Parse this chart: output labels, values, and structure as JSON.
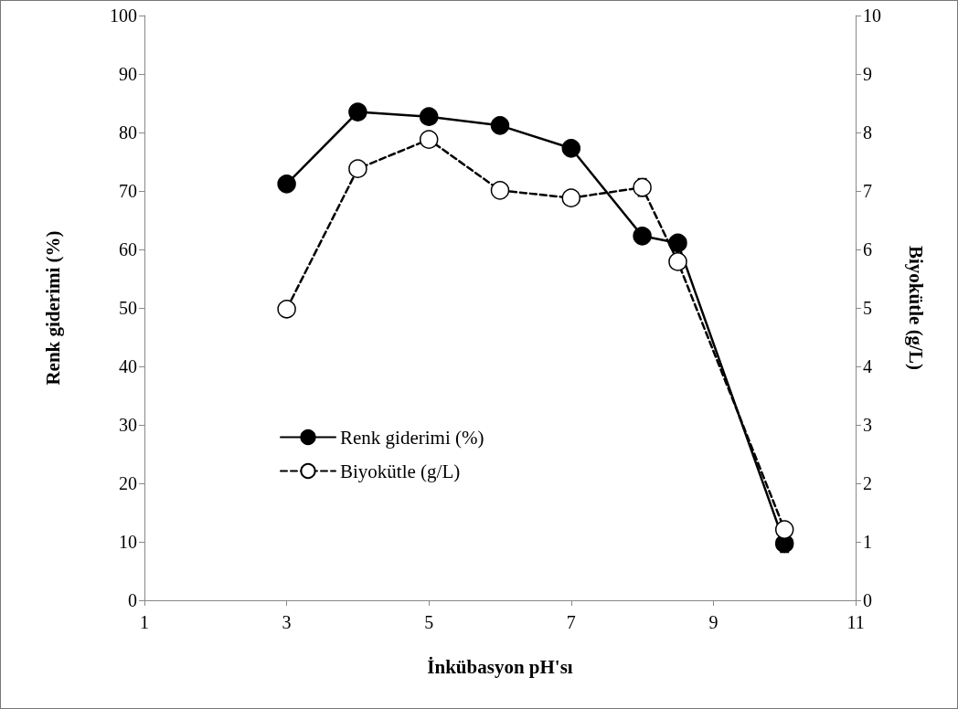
{
  "chart_data": {
    "type": "line",
    "xlabel": "İnkübasyon pH'sı",
    "ylabel": "Renk giderimi (%)",
    "y2label": "Biyokütle (g/L)",
    "x": [
      3,
      4,
      5,
      6,
      7,
      8,
      8.5,
      10
    ],
    "series": [
      {
        "name": "Renk giderimi (%)",
        "color": "#000000",
        "line_style": "solid",
        "values": [
          71.2,
          83.5,
          82.7,
          81.2,
          77.3,
          62.3,
          61.1,
          9.7
        ],
        "errors": [
          null,
          null,
          null,
          null,
          null,
          null,
          null,
          1.5
        ]
      },
      {
        "name": "Biyokütle (g/L)",
        "color": "#ffffff",
        "line_style": "dashed",
        "axis": "y2",
        "values": [
          4.98,
          7.38,
          7.88,
          7.01,
          6.88,
          7.06,
          5.79,
          1.21
        ],
        "errors": [
          null,
          null,
          null,
          null,
          null,
          0.15,
          null,
          null
        ]
      }
    ],
    "xlim": [
      1,
      11
    ],
    "xticks": [
      1,
      3,
      5,
      7,
      9,
      11
    ],
    "ylim": [
      0,
      100
    ],
    "yticks": [
      0,
      10,
      20,
      30,
      40,
      50,
      60,
      70,
      80,
      90,
      100
    ],
    "y2lim": [
      0,
      10
    ],
    "y2ticks": [
      0,
      1,
      2,
      3,
      4,
      5,
      6,
      7,
      8,
      9,
      10
    ],
    "marker": "circle",
    "grid": false,
    "legend": "left"
  }
}
